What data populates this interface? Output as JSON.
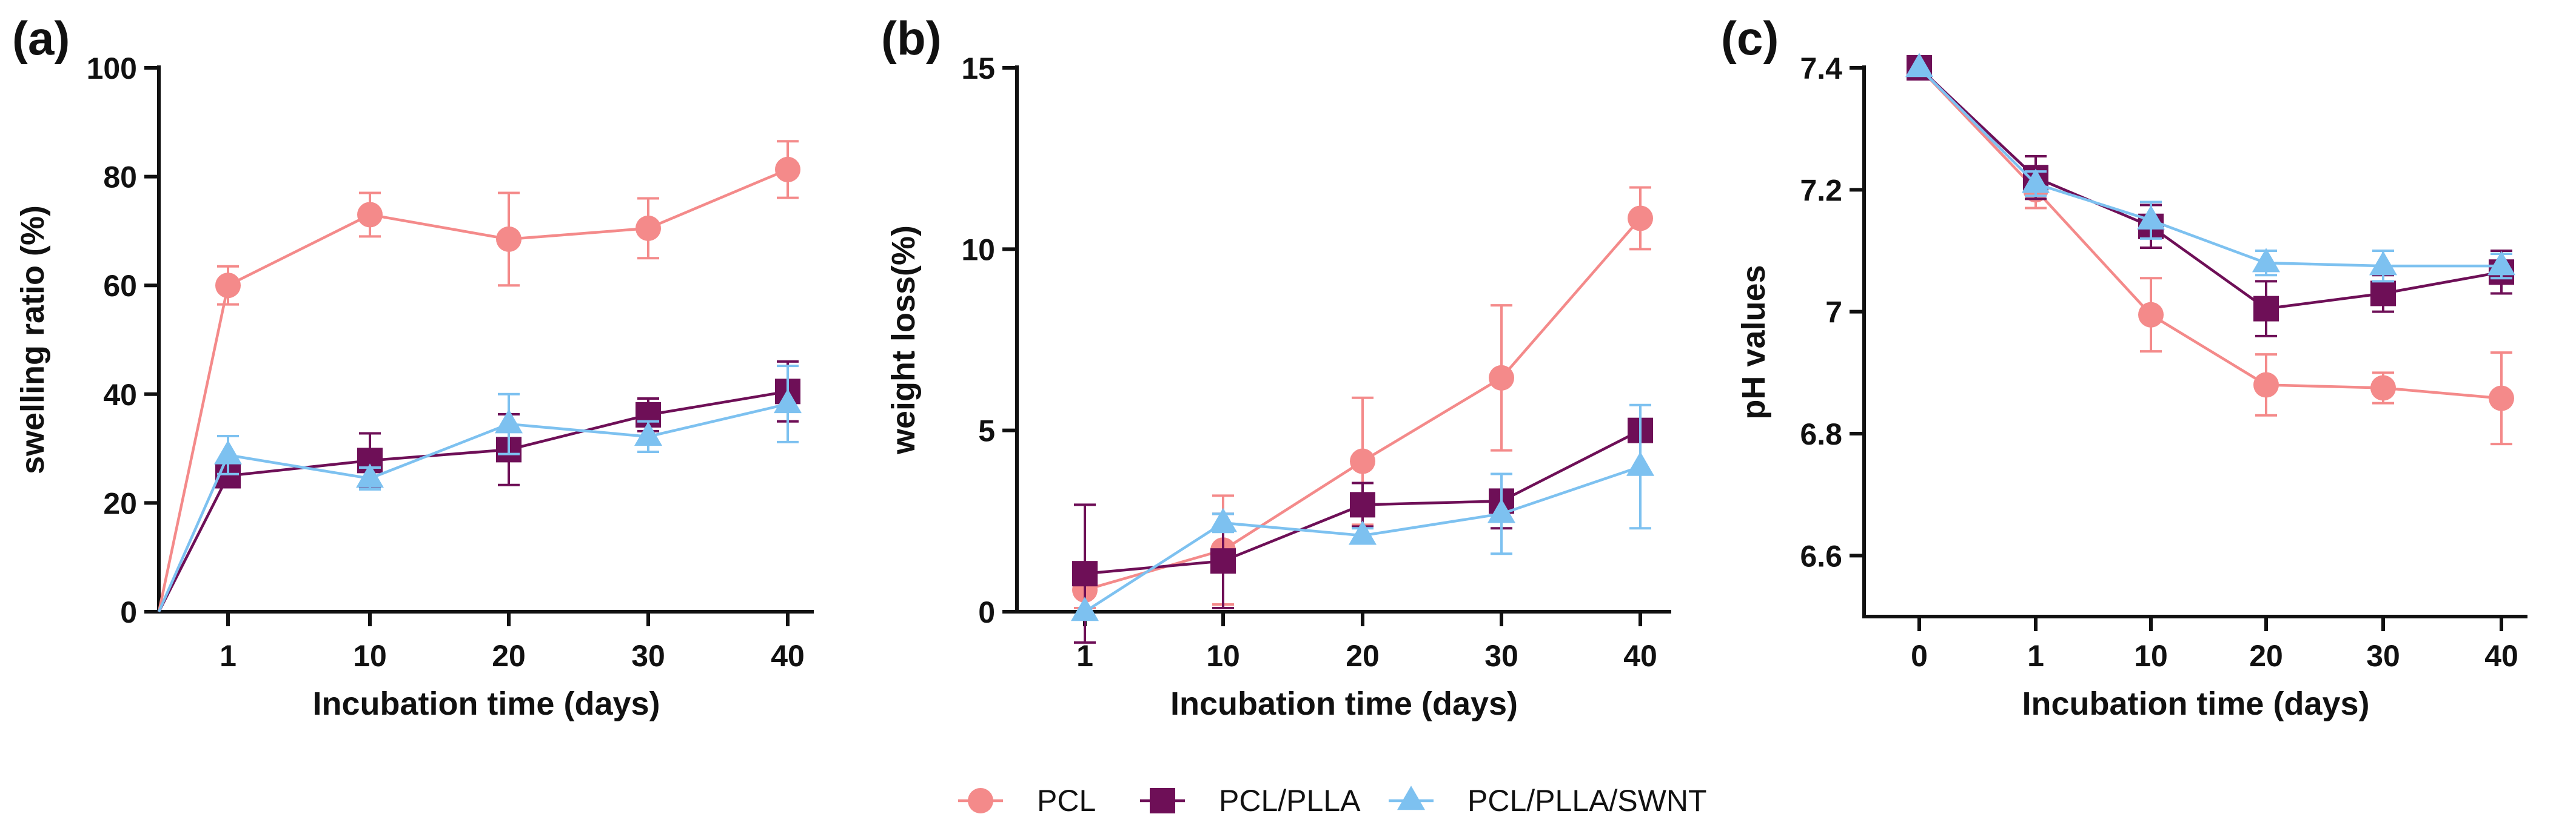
{
  "colors": {
    "PCL": "#F48A8A",
    "PCL/PLLA": "#6E0F57",
    "PCL/PLLA/SWNT": "#7DC1F0",
    "axis": "#111111"
  },
  "legend": {
    "placement": "bottom-center",
    "items": [
      {
        "name": "PCL",
        "marker": "circle"
      },
      {
        "name": "PCL/PLLA",
        "marker": "square"
      },
      {
        "name": "PCL/PLLA/SWNT",
        "marker": "triangle"
      }
    ]
  },
  "chart_data": [
    {
      "panel": "(a)",
      "type": "line",
      "xlabel": "Incubation time (days)",
      "ylabel": "swelling ratio (%)",
      "ylim": [
        0,
        100
      ],
      "yticks": [
        0,
        20,
        40,
        60,
        80,
        100
      ],
      "categories": [
        "0",
        "1",
        "10",
        "20",
        "30",
        "40"
      ],
      "xtick_labels": [
        "1",
        "10",
        "20",
        "30",
        "40"
      ],
      "series": [
        {
          "name": "PCL",
          "marker": "circle",
          "values": [
            0,
            60,
            73,
            68.5,
            70.5,
            81.3
          ],
          "errors": [
            0,
            3.5,
            4,
            8.5,
            5.5,
            5.2
          ]
        },
        {
          "name": "PCL/PLLA",
          "marker": "square",
          "values": [
            0,
            25,
            27.8,
            29.8,
            36.2,
            40.5
          ],
          "errors": [
            0,
            2,
            5,
            6.5,
            3,
            5.5
          ]
        },
        {
          "name": "PCL/PLLA/SWNT",
          "marker": "triangle",
          "values": [
            0,
            28.8,
            24.5,
            34.5,
            32.2,
            38.2
          ],
          "errors": [
            0,
            3.5,
            2,
            5.5,
            2.8,
            7
          ]
        }
      ]
    },
    {
      "panel": "(b)",
      "type": "line",
      "xlabel": "Incubation time (days)",
      "ylabel": "weight loss(%)",
      "ylim": [
        0,
        15
      ],
      "yticks": [
        0,
        5,
        10,
        15
      ],
      "categories": [
        "1",
        "10",
        "20",
        "30",
        "40"
      ],
      "xtick_labels": [
        "1",
        "10",
        "20",
        "30",
        "40"
      ],
      "series": [
        {
          "name": "PCL",
          "marker": "circle",
          "values": [
            0.6,
            1.7,
            4.15,
            6.45,
            10.85
          ],
          "errors": [
            0.5,
            1.5,
            1.75,
            2,
            0.85
          ]
        },
        {
          "name": "PCL/PLLA",
          "marker": "square",
          "values": [
            1.05,
            1.4,
            2.95,
            3.05,
            5.0
          ],
          "errors": [
            1.9,
            1.3,
            0.6,
            0.75,
            0.2
          ]
        },
        {
          "name": "PCL/PLLA/SWNT",
          "marker": "triangle",
          "values": [
            0,
            2.45,
            2.1,
            2.7,
            4.0
          ],
          "errors": [
            0,
            0.25,
            0.2,
            1.1,
            1.7
          ]
        }
      ]
    },
    {
      "panel": "(c)",
      "type": "line",
      "xlabel": "Incubation time (days)",
      "ylabel": "pH values",
      "ylim": [
        6.5,
        7.4
      ],
      "yticks": [
        6.6,
        6.8,
        7.0,
        7.2,
        7.4
      ],
      "categories": [
        "0",
        "1",
        "10",
        "20",
        "30",
        "40"
      ],
      "xtick_labels": [
        "0",
        "1",
        "10",
        "20",
        "30",
        "40"
      ],
      "series": [
        {
          "name": "PCL",
          "marker": "circle",
          "values": [
            7.4,
            7.2,
            6.995,
            6.88,
            6.875,
            6.858
          ],
          "errors": [
            0,
            0.03,
            0.06,
            0.05,
            0.025,
            0.075
          ]
        },
        {
          "name": "PCL/PLLA",
          "marker": "square",
          "values": [
            7.4,
            7.22,
            7.14,
            7.005,
            7.03,
            7.065
          ],
          "errors": [
            0,
            0.035,
            0.035,
            0.045,
            0.03,
            0.035
          ]
        },
        {
          "name": "PCL/PLLA/SWNT",
          "marker": "triangle",
          "values": [
            7.4,
            7.21,
            7.15,
            7.08,
            7.075,
            7.075
          ],
          "errors": [
            0,
            0.02,
            0.03,
            0.02,
            0.025,
            0.02
          ]
        }
      ]
    }
  ]
}
